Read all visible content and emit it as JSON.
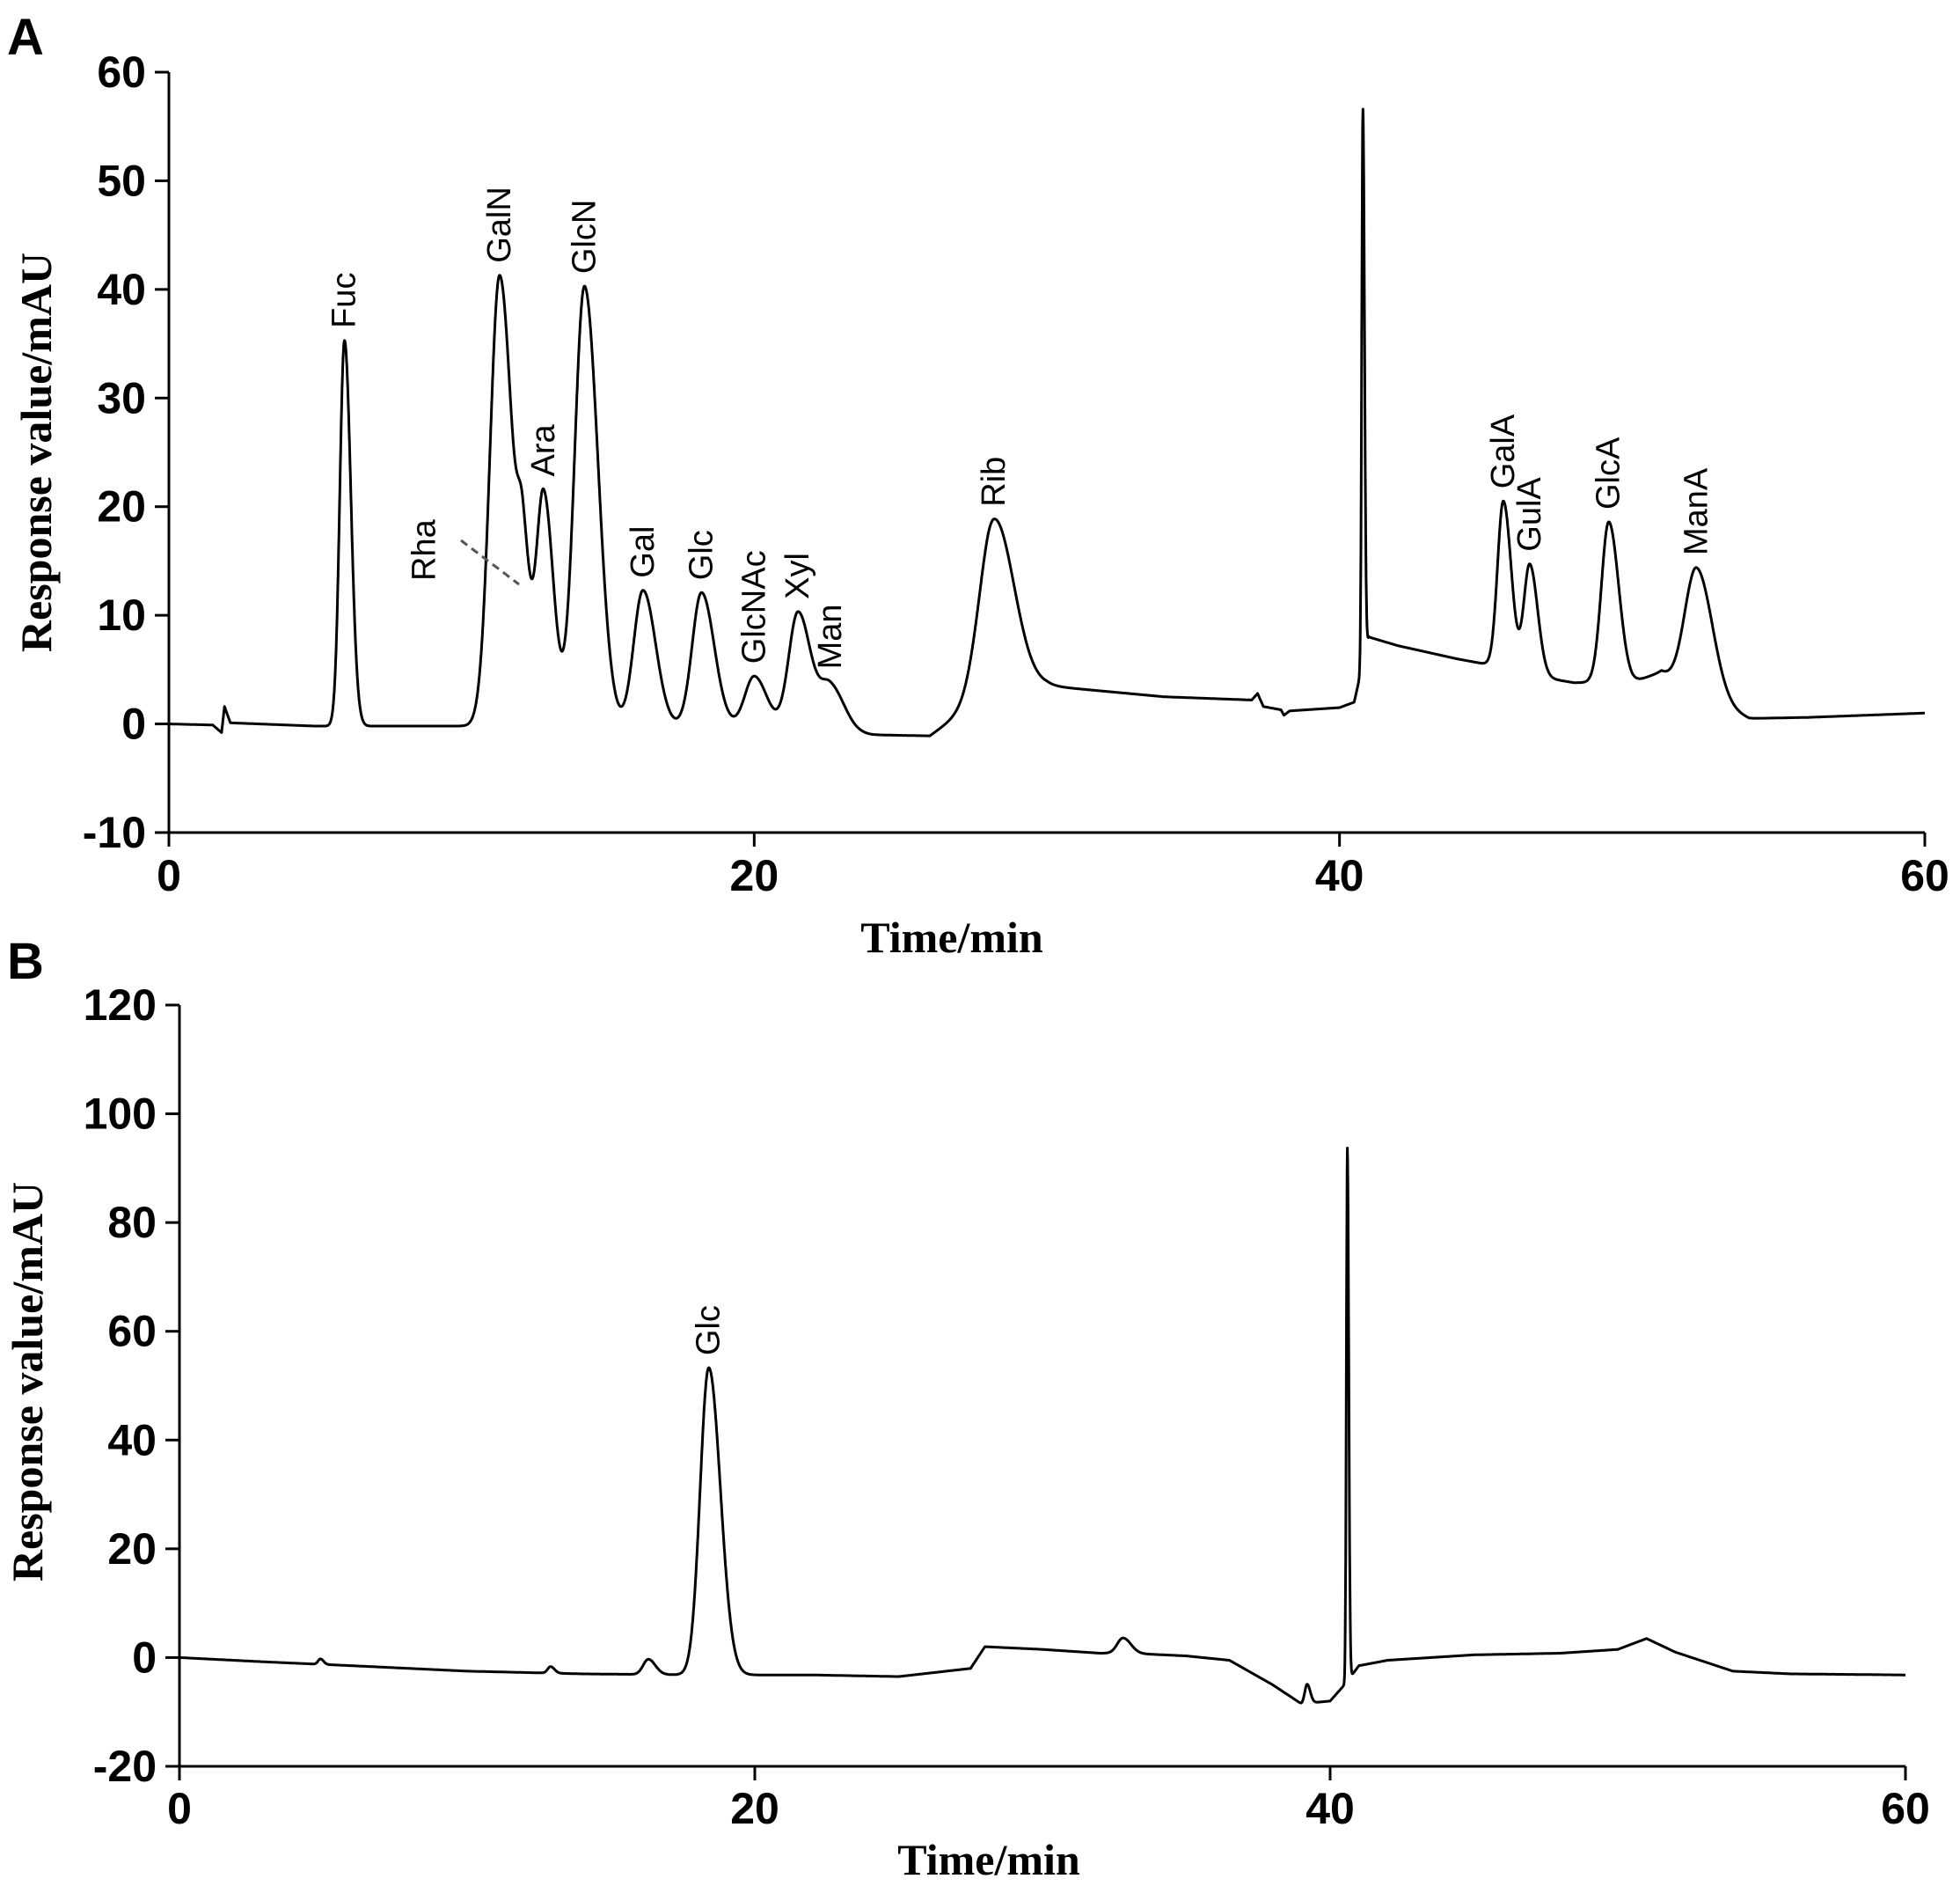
{
  "chart_data": [
    {
      "type": "line",
      "panel_label": "A",
      "xlabel": "Time/min",
      "ylabel": "Response value/mAU",
      "xlim": [
        0,
        60
      ],
      "ylim": [
        -10,
        60
      ],
      "xticks": [
        0,
        20,
        40,
        60
      ],
      "yticks": [
        -10,
        0,
        10,
        20,
        30,
        40,
        50,
        60
      ],
      "grid": false,
      "baseline": [
        [
          0,
          0.0
        ],
        [
          1.5,
          -0.1
        ],
        [
          1.8,
          -0.8
        ],
        [
          1.9,
          1.6
        ],
        [
          2.1,
          0.1
        ],
        [
          5,
          -0.2
        ],
        [
          11,
          -0.2
        ],
        [
          20,
          -0.2
        ],
        [
          22,
          -0.6
        ],
        [
          24,
          -1.0
        ],
        [
          26,
          -1.1
        ],
        [
          28,
          2.8
        ],
        [
          30,
          3.5
        ],
        [
          34,
          2.5
        ],
        [
          37,
          2.2
        ],
        [
          37.2,
          2.8
        ],
        [
          37.4,
          1.6
        ],
        [
          38,
          1.3
        ],
        [
          38.1,
          0.8
        ],
        [
          38.3,
          1.2
        ],
        [
          40,
          1.5
        ],
        [
          40.5,
          2.0
        ],
        [
          41,
          8.0
        ],
        [
          42,
          7.2
        ],
        [
          44,
          6.0
        ],
        [
          45,
          5.5
        ],
        [
          46,
          4.7
        ],
        [
          48,
          3.8
        ],
        [
          50,
          3.8
        ],
        [
          51,
          4.8
        ],
        [
          52,
          2.6
        ],
        [
          54,
          0.5
        ],
        [
          56,
          0.6
        ],
        [
          60,
          1.0
        ]
      ],
      "peaks": [
        {
          "name": "Fuc",
          "x": 6.0,
          "height": 35.5,
          "width": 0.16
        },
        {
          "name": "GalN",
          "x": 11.3,
          "height": 41.5,
          "width": 0.33
        },
        {
          "name": "Rha",
          "x": 12.1,
          "height": 12.0,
          "width": 0.18
        },
        {
          "name": "Ara",
          "x": 12.8,
          "height": 21.5,
          "width": 0.25
        },
        {
          "name": "GlcN",
          "x": 14.2,
          "height": 40.5,
          "width": 0.34
        },
        {
          "name": "Gal",
          "x": 16.2,
          "height": 12.5,
          "width": 0.32
        },
        {
          "name": "Glc",
          "x": 18.2,
          "height": 12.3,
          "width": 0.32
        },
        {
          "name": "GlcNAc",
          "x": 20.0,
          "height": 4.6,
          "width": 0.32
        },
        {
          "name": "Xyl",
          "x": 21.5,
          "height": 10.8,
          "width": 0.32
        },
        {
          "name": "Man",
          "x": 22.6,
          "height": 4.2,
          "width": 0.35
        },
        {
          "name": "Rib",
          "x": 28.2,
          "height": 16.0,
          "width": 0.5
        },
        {
          "name": "",
          "x": 40.8,
          "height": 51.0,
          "width": 0.04
        },
        {
          "name": "GalA",
          "x": 45.6,
          "height": 15.5,
          "width": 0.2
        },
        {
          "name": "GulA",
          "x": 46.5,
          "height": 10.2,
          "width": 0.2
        },
        {
          "name": "GlcA",
          "x": 49.2,
          "height": 14.8,
          "width": 0.25
        },
        {
          "name": "ManA",
          "x": 52.2,
          "height": 12.0,
          "width": 0.4
        }
      ]
    },
    {
      "type": "line",
      "panel_label": "B",
      "xlabel": "Time/min",
      "ylabel": "Response value/mAU",
      "xlim": [
        0,
        60
      ],
      "ylim": [
        -20,
        120
      ],
      "xticks": [
        0,
        20,
        40,
        60
      ],
      "yticks": [
        -20,
        0,
        20,
        40,
        60,
        80,
        100,
        120
      ],
      "grid": false,
      "baseline": [
        [
          0,
          0.0
        ],
        [
          3,
          -0.8
        ],
        [
          6,
          -1.5
        ],
        [
          10,
          -2.5
        ],
        [
          14,
          -3.0
        ],
        [
          18,
          -3.2
        ],
        [
          22,
          -3.2
        ],
        [
          25,
          -3.5
        ],
        [
          27.5,
          -2.0
        ],
        [
          28,
          2.0
        ],
        [
          30,
          1.5
        ],
        [
          32,
          0.8
        ],
        [
          33,
          0.8
        ],
        [
          35,
          0.3
        ],
        [
          36.5,
          -0.5
        ],
        [
          38,
          -5.0
        ],
        [
          39,
          -8.5
        ],
        [
          40,
          -8.0
        ],
        [
          40.5,
          -5.0
        ],
        [
          41,
          -1.5
        ],
        [
          42,
          -0.5
        ],
        [
          45,
          0.5
        ],
        [
          48,
          0.8
        ],
        [
          50,
          1.5
        ],
        [
          51,
          3.5
        ],
        [
          52,
          1.0
        ],
        [
          54,
          -2.5
        ],
        [
          56,
          -3.0
        ],
        [
          60,
          -3.2
        ]
      ],
      "peaks": [
        {
          "name": "",
          "x": 4.9,
          "height": 1.0,
          "width": 0.08
        },
        {
          "name": "",
          "x": 12.9,
          "height": 1.2,
          "width": 0.1
        },
        {
          "name": "",
          "x": 16.3,
          "height": 2.8,
          "width": 0.18
        },
        {
          "name": "Glc",
          "x": 18.4,
          "height": 56.5,
          "width": 0.3
        },
        {
          "name": "",
          "x": 32.8,
          "height": 2.8,
          "width": 0.2
        },
        {
          "name": "",
          "x": 39.2,
          "height": 3.5,
          "width": 0.08
        },
        {
          "name": "",
          "x": 40.6,
          "height": 98.0,
          "width": 0.035
        }
      ]
    }
  ]
}
